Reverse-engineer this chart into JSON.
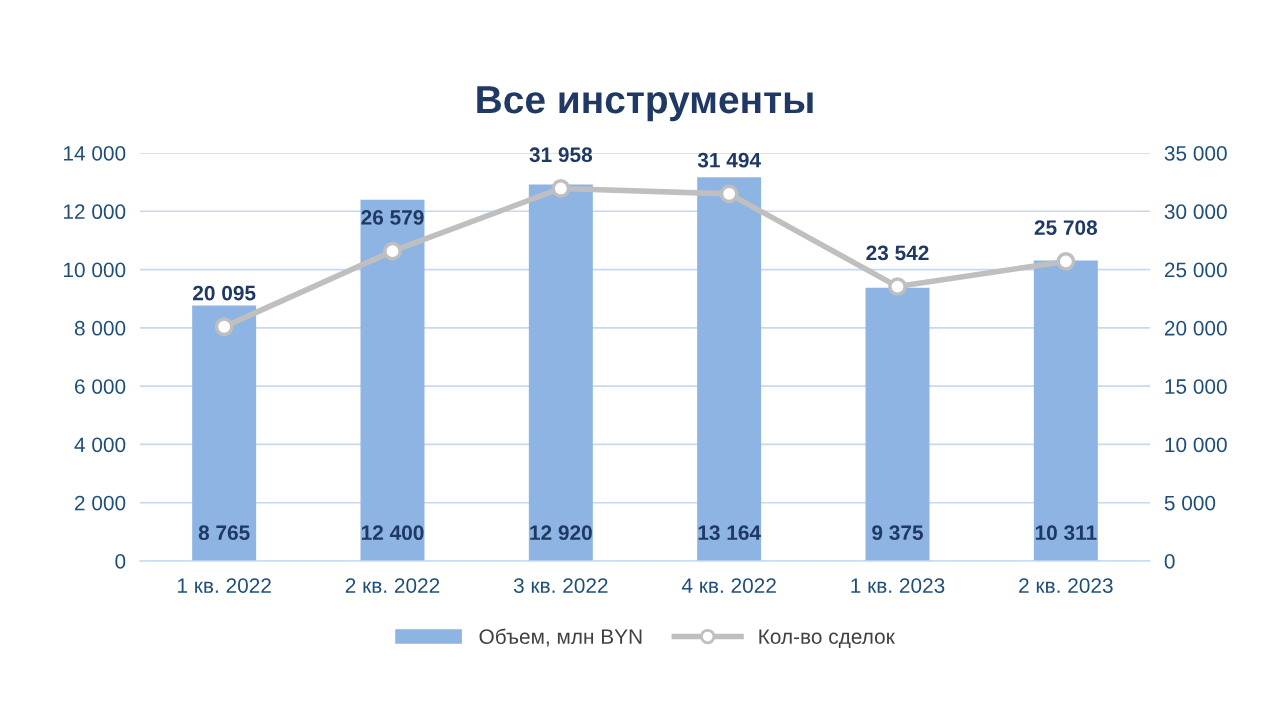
{
  "chart_data": {
    "type": "bar",
    "title": "Все инструменты",
    "categories": [
      "1 кв. 2022",
      "2 кв. 2022",
      "3 кв. 2022",
      "4 кв. 2022",
      "1 кв. 2023",
      "2 кв. 2023"
    ],
    "series": [
      {
        "name": "Объем, млн BYN",
        "color": "#8db4e2",
        "values": [
          8765,
          12400,
          12920,
          13164,
          9375,
          10311
        ],
        "value_labels": [
          "8 765",
          "12 400",
          "12 920",
          "13 164",
          "9 375",
          "10 311"
        ]
      },
      {
        "name": "Кол-во сделок",
        "type": "line",
        "axis": "y2",
        "color": "#bfbfbf",
        "marker": "circle",
        "values": [
          20095,
          26579,
          31958,
          31494,
          23542,
          25708
        ],
        "value_labels": [
          "20 095",
          "26 579",
          "31 958",
          "31 494",
          "23 542",
          "25 708"
        ]
      }
    ],
    "ylim": [
      0,
      14000
    ],
    "yticks": [
      {
        "value": 0,
        "label": "0"
      },
      {
        "value": 2000,
        "label": "2 000"
      },
      {
        "value": 4000,
        "label": "4 000"
      },
      {
        "value": 6000,
        "label": "6 000"
      },
      {
        "value": 8000,
        "label": "8 000"
      },
      {
        "value": 10000,
        "label": "10 000"
      },
      {
        "value": 12000,
        "label": "12 000"
      },
      {
        "value": 14000,
        "label": "14 000"
      }
    ],
    "y2lim": [
      0,
      35000
    ],
    "y2ticks": [
      {
        "value": 0,
        "label": "0"
      },
      {
        "value": 5000,
        "label": "5 000"
      },
      {
        "value": 10000,
        "label": "10 000"
      },
      {
        "value": 15000,
        "label": "15 000"
      },
      {
        "value": 20000,
        "label": "20 000"
      },
      {
        "value": 25000,
        "label": "25 000"
      },
      {
        "value": 30000,
        "label": "30 000"
      },
      {
        "value": 35000,
        "label": "35 000"
      }
    ],
    "grid": "y",
    "legend": "bottom"
  }
}
